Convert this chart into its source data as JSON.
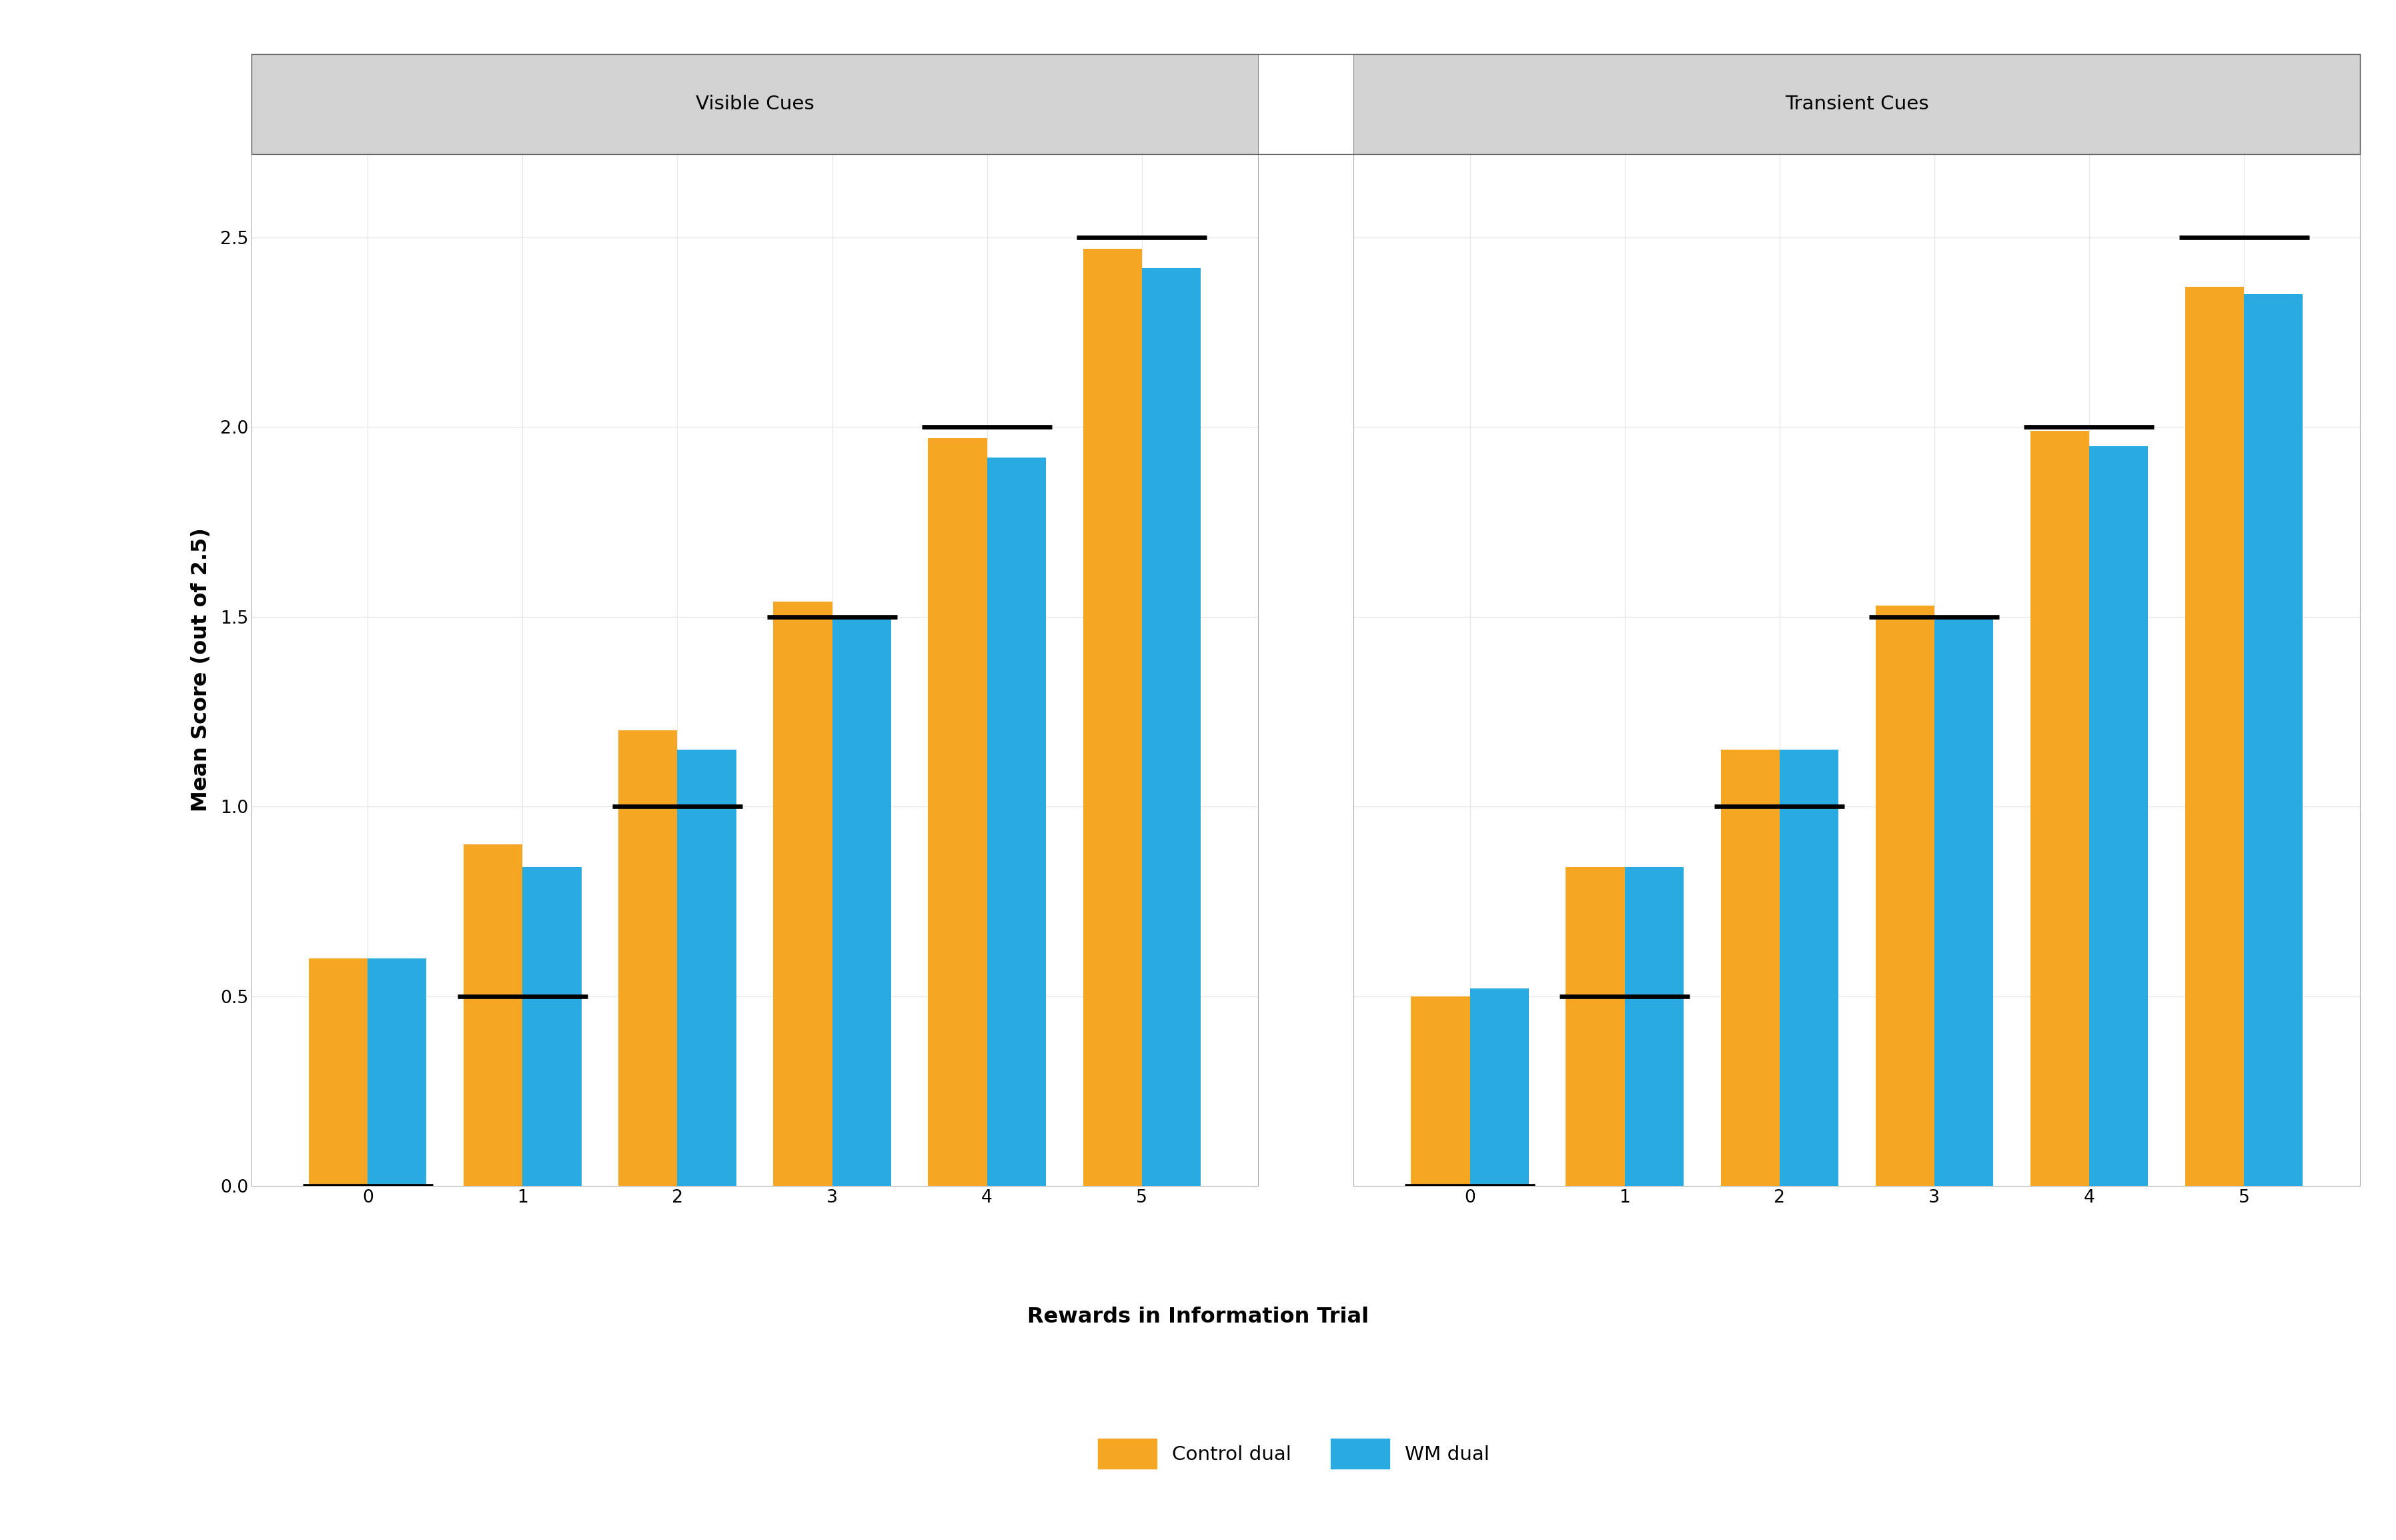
{
  "panel_titles": [
    "Visible Cues",
    "Transient Cues"
  ],
  "x_labels": [
    0,
    1,
    2,
    3,
    4,
    5
  ],
  "visible_orange": [
    0.6,
    0.9,
    1.2,
    1.54,
    1.97,
    2.47
  ],
  "visible_blue": [
    0.6,
    0.84,
    1.15,
    1.5,
    1.92,
    2.42
  ],
  "visible_median": [
    0.0,
    0.5,
    1.0,
    1.5,
    2.0,
    2.5
  ],
  "transient_orange": [
    0.5,
    0.84,
    1.15,
    1.53,
    1.99,
    2.37
  ],
  "transient_blue": [
    0.52,
    0.84,
    1.15,
    1.5,
    1.95,
    2.35
  ],
  "transient_median": [
    0.0,
    0.5,
    1.0,
    1.5,
    2.0,
    2.5
  ],
  "orange_color": "#F5A623",
  "blue_color": "#29ABE2",
  "ylim": [
    0,
    2.72
  ],
  "yticks": [
    0.0,
    0.5,
    1.0,
    1.5,
    2.0,
    2.5
  ],
  "ylabel": "Mean Score (out of 2.5)",
  "xlabel": "Rewards in Information Trial",
  "legend_labels": [
    "Control dual",
    "WM dual"
  ],
  "panel_bg": "#FFFFFF",
  "header_bg": "#D3D3D3",
  "outer_bg": "#D3D3D3",
  "grid_color": "#E8E8E8",
  "bar_width": 0.38,
  "median_line_halfwidth": 0.42,
  "median_line_thickness": 5.0,
  "title_fontsize": 22,
  "axis_label_fontsize": 24,
  "tick_fontsize": 20,
  "legend_fontsize": 22
}
